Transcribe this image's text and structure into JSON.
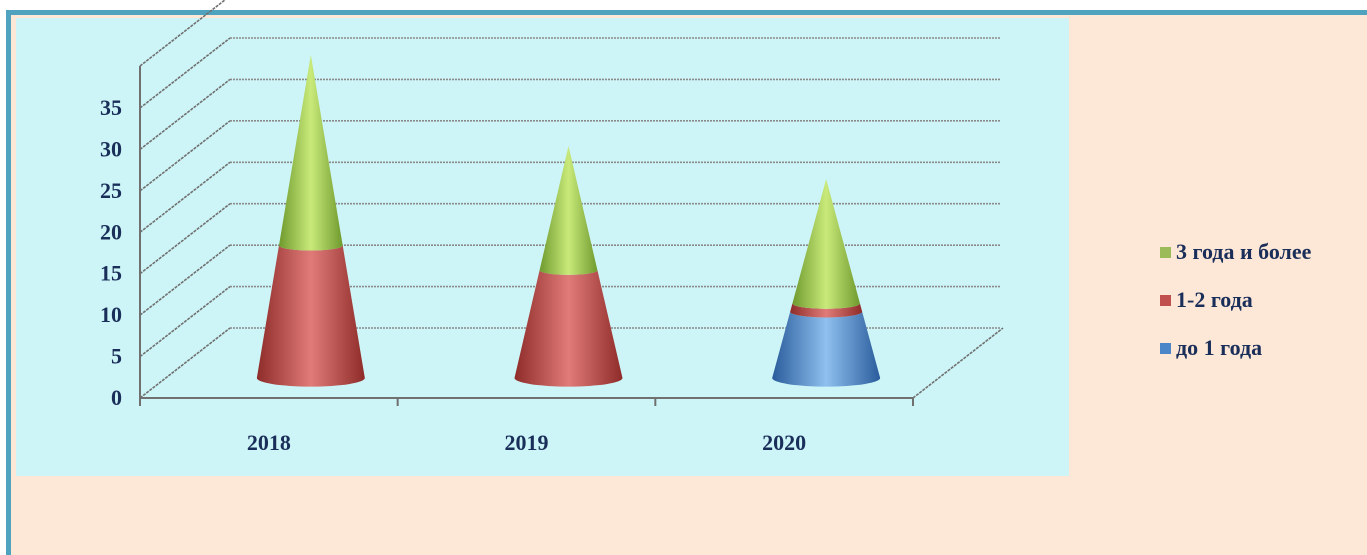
{
  "chart_data": {
    "type": "bar",
    "subtype": "stacked-3d-cone",
    "categories": [
      "2018",
      "2019",
      "2020"
    ],
    "series": [
      {
        "name": "до 1 года",
        "values": [
          0,
          0,
          8
        ],
        "color": "#4a86c8"
      },
      {
        "name": "1-2 года",
        "values": [
          16,
          13,
          1
        ],
        "color": "#c0504d"
      },
      {
        "name": "3 года и более",
        "values": [
          23,
          15,
          15
        ],
        "color": "#9bbb59"
      }
    ],
    "ylim": [
      0,
      35
    ],
    "yticks": [
      "0",
      "5",
      "10",
      "15",
      "20",
      "25",
      "30",
      "35"
    ],
    "grid": true,
    "legend_position": "right",
    "legend_order": [
      "3 года и более",
      "1-2 года",
      "до 1 года"
    ]
  },
  "colors": {
    "frame_border": "#4fa3bf",
    "page_background": "#fde7d6",
    "plot_background": "#cdf5f7",
    "text": "#1a2e5a"
  }
}
